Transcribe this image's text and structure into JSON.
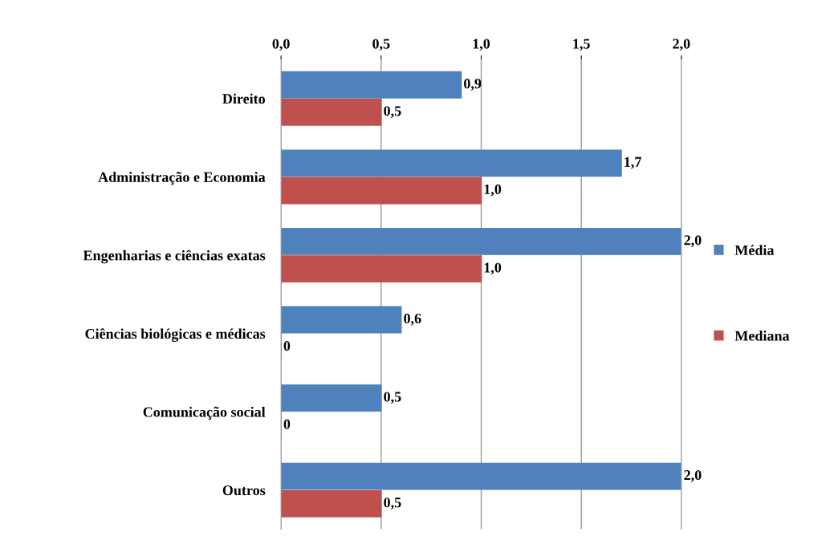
{
  "chart_data": {
    "type": "bar",
    "orientation": "horizontal",
    "categories": [
      "Direito",
      "Administração e Economia",
      "Engenharias e ciências exatas",
      "Ciências biológicas e médicas",
      "Comunicação social",
      "Outros"
    ],
    "series": [
      {
        "name": "Média",
        "color": "#4f81bd",
        "values": [
          0.9,
          1.7,
          2.0,
          0.6,
          0.5,
          2.0
        ],
        "value_labels": [
          "0,9",
          "1,7",
          "2,0",
          "0,6",
          "0,5",
          "2,0"
        ]
      },
      {
        "name": "Mediana",
        "color": "#c0504d",
        "values": [
          0.5,
          1.0,
          1.0,
          0,
          0,
          0.5
        ],
        "value_labels": [
          "0,5",
          "1,0",
          "1,0",
          "0",
          "0",
          "0,5"
        ]
      }
    ],
    "xlim": [
      0,
      2
    ],
    "xticks": [
      {
        "value": 0,
        "label": "0,0"
      },
      {
        "value": 0.5,
        "label": "0,5"
      },
      {
        "value": 1,
        "label": "1,0"
      },
      {
        "value": 1.5,
        "label": "1,5"
      },
      {
        "value": 2,
        "label": "2,0"
      }
    ],
    "grid": "x",
    "legend": "right"
  }
}
